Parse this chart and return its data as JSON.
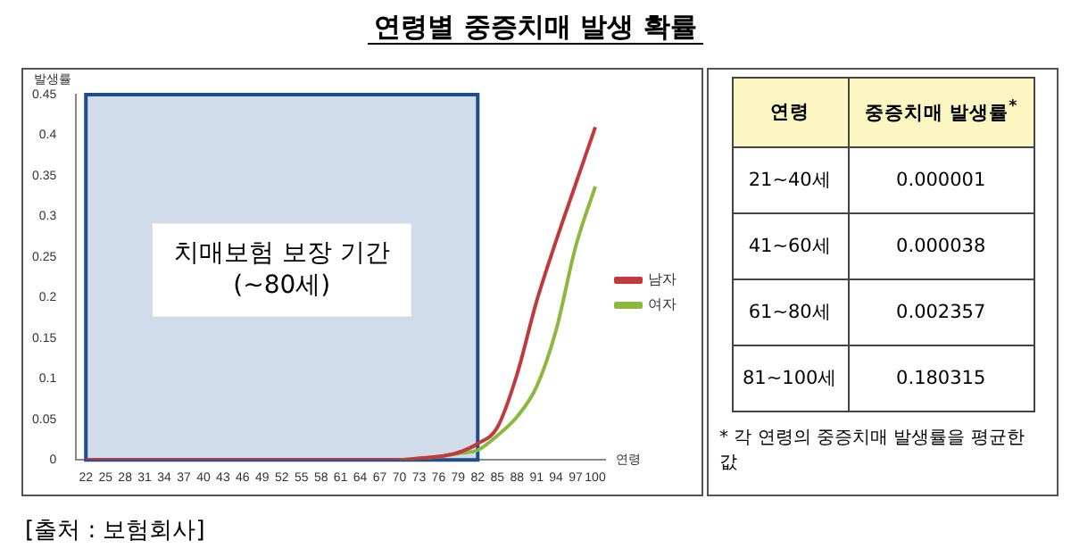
{
  "chart_data": [
    {
      "type": "line",
      "title": "연령별 중증치매 발생 확률",
      "ylabel": "발생률",
      "xlabel": "연령",
      "categories": [
        "22",
        "25",
        "28",
        "31",
        "34",
        "37",
        "40",
        "43",
        "46",
        "49",
        "52",
        "55",
        "58",
        "61",
        "64",
        "67",
        "70",
        "73",
        "76",
        "79",
        "82",
        "85",
        "88",
        "91",
        "94",
        "97",
        "100"
      ],
      "series": [
        {
          "name": "남자",
          "color": "#c0393b",
          "values": [
            0,
            0,
            0,
            0,
            0,
            0,
            0,
            0,
            0,
            0,
            0,
            0,
            0,
            0,
            0,
            0,
            0,
            0.002,
            0.004,
            0.009,
            0.02,
            0.04,
            0.105,
            0.195,
            0.27,
            0.34,
            0.41
          ]
        },
        {
          "name": "여자",
          "color": "#8cb83e",
          "values": [
            null,
            null,
            null,
            null,
            null,
            null,
            null,
            null,
            null,
            null,
            null,
            null,
            null,
            null,
            null,
            null,
            0,
            0.002,
            0.004,
            0.008,
            0.012,
            0.03,
            0.053,
            0.09,
            0.16,
            0.263,
            0.337
          ]
        }
      ],
      "ylim": [
        0,
        0.45
      ],
      "yticks": [
        0,
        0.05,
        0.1,
        0.15,
        0.2,
        0.25,
        0.3,
        0.35,
        0.4,
        0.45
      ],
      "bands": [
        {
          "axis": "x",
          "from": "22",
          "to": "82",
          "label": "치매보험 보장 기간 (~80세)",
          "color": "#c9d6e8"
        }
      ],
      "legend": "right",
      "grid": false,
      "marker": "none",
      "line_style": "solid",
      "annotations": [
        "[출처 : 보험회사]"
      ]
    },
    {
      "type": "other",
      "xlabel": "연령",
      "ylabel": "중증치매 발생률$^{*}$",
      "categories": [
        "21~40세",
        "41~60세",
        "61~80세",
        "81~100세"
      ],
      "annotations": [
        "0.000001",
        "0.000038",
        "0.002357",
        "0.180315",
        "* 각 연령의 중증치매 발생률을 평균한 값"
      ]
    }
  ]
}
